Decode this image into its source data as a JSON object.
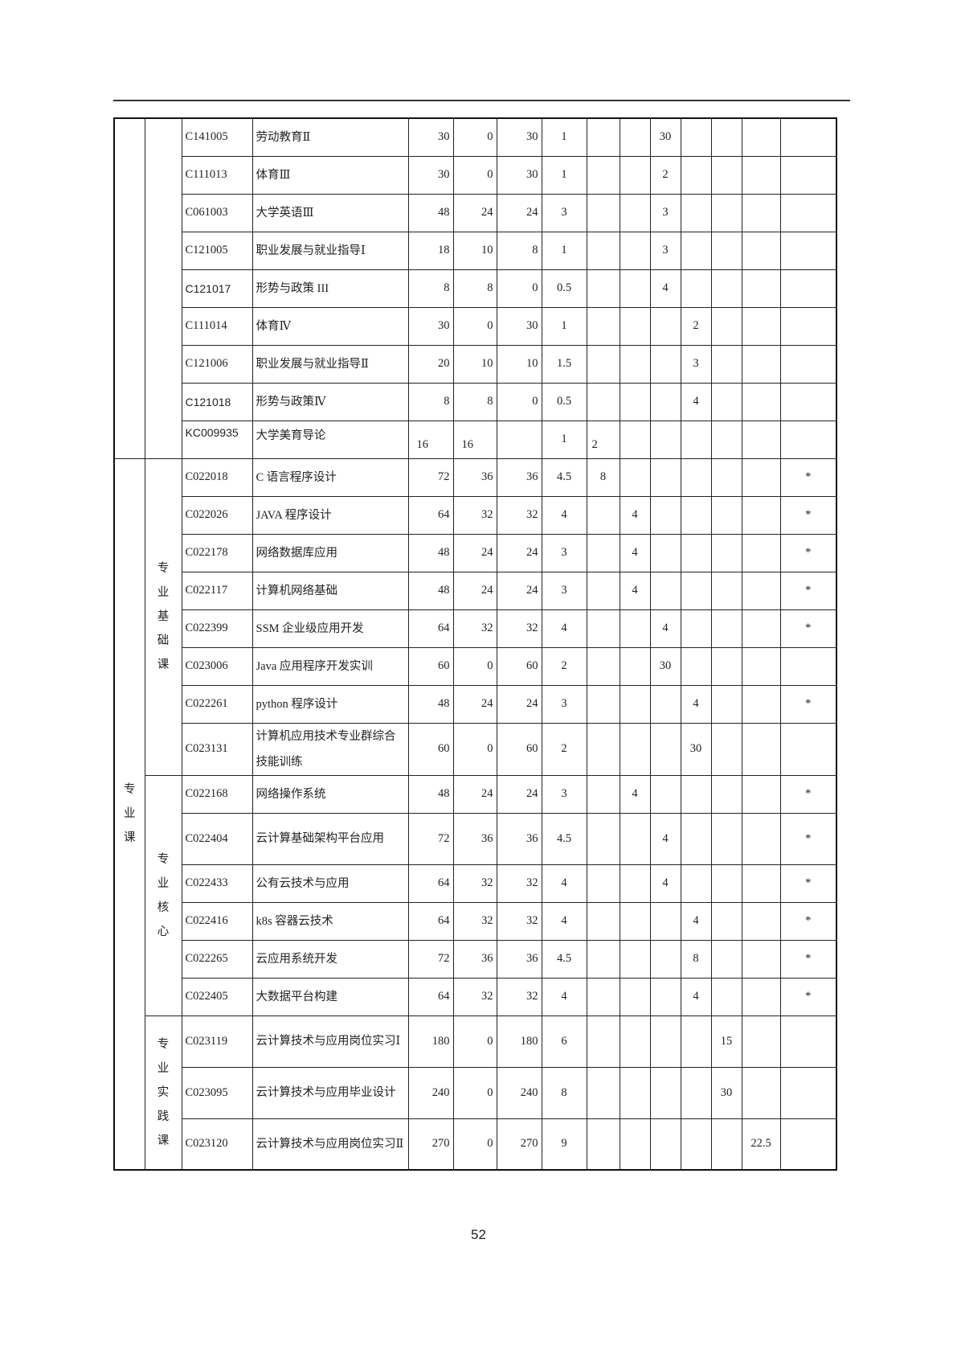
{
  "page_number": "52",
  "groups": [
    {
      "outer_label": "",
      "inner_label": "",
      "rows": [
        {
          "code": "C141005",
          "name": "劳动教育Ⅱ",
          "total": "30",
          "theory": "0",
          "practice": "30",
          "credit": "1",
          "sem": [
            "",
            "",
            "30",
            "",
            "",
            ""
          ],
          "mark": ""
        },
        {
          "code": "C111013",
          "name": "体育Ⅲ",
          "total": "30",
          "theory": "0",
          "practice": "30",
          "credit": "1",
          "sem": [
            "",
            "",
            "2",
            "",
            "",
            ""
          ],
          "mark": ""
        },
        {
          "code": "C061003",
          "name": "大学英语Ⅲ",
          "total": "48",
          "theory": "24",
          "practice": "24",
          "credit": "3",
          "sem": [
            "",
            "",
            "3",
            "",
            "",
            ""
          ],
          "mark": ""
        },
        {
          "code": "C121005",
          "name": "职业发展与就业指导Ⅰ",
          "total": "18",
          "theory": "10",
          "practice": "8",
          "credit": "1",
          "sem": [
            "",
            "",
            "3",
            "",
            "",
            ""
          ],
          "mark": ""
        },
        {
          "code": "C121017",
          "name": "形势与政策 III",
          "total": "8",
          "theory": "8",
          "practice": "0",
          "credit": "0.5",
          "sem": [
            "",
            "",
            "4",
            "",
            "",
            ""
          ],
          "mark": "",
          "sans": true
        },
        {
          "code": "C111014",
          "name": "体育Ⅳ",
          "total": "30",
          "theory": "0",
          "practice": "30",
          "credit": "1",
          "sem": [
            "",
            "",
            "",
            "2",
            "",
            ""
          ],
          "mark": ""
        },
        {
          "code": "C121006",
          "name": "职业发展与就业指导Ⅱ",
          "total": "20",
          "theory": "10",
          "practice": "10",
          "credit": "1.5",
          "sem": [
            "",
            "",
            "",
            "3",
            "",
            ""
          ],
          "mark": ""
        },
        {
          "code": "C121018",
          "name": "形势与政策Ⅳ",
          "total": "8",
          "theory": "8",
          "practice": "0",
          "credit": "0.5",
          "sem": [
            "",
            "",
            "",
            "4",
            "",
            ""
          ],
          "mark": "",
          "sans": true
        },
        {
          "code": "KC009935",
          "name": "大学美育导论",
          "total": "16",
          "theory": "16",
          "practice": "",
          "credit": "1",
          "sem": [
            "2",
            "",
            "",
            "",
            "",
            ""
          ],
          "mark": "",
          "sans": true,
          "special": true
        }
      ]
    },
    {
      "outer_label": "专业课",
      "inner_label": "专业基础课",
      "rows": [
        {
          "code": "C022018",
          "name": "C 语言程序设计",
          "total": "72",
          "theory": "36",
          "practice": "36",
          "credit": "4.5",
          "sem": [
            "8",
            "",
            "",
            "",
            "",
            ""
          ],
          "mark": "*"
        },
        {
          "code": "C022026",
          "name": "JAVA 程序设计",
          "total": "64",
          "theory": "32",
          "practice": "32",
          "credit": "4",
          "sem": [
            "",
            "4",
            "",
            "",
            "",
            ""
          ],
          "mark": "*"
        },
        {
          "code": "C022178",
          "name": "网络数据库应用",
          "total": "48",
          "theory": "24",
          "practice": "24",
          "credit": "3",
          "sem": [
            "",
            "4",
            "",
            "",
            "",
            ""
          ],
          "mark": "*"
        },
        {
          "code": "C022117",
          "name": "计算机网络基础",
          "total": "48",
          "theory": "24",
          "practice": "24",
          "credit": "3",
          "sem": [
            "",
            "4",
            "",
            "",
            "",
            ""
          ],
          "mark": "*"
        },
        {
          "code": "C022399",
          "name": "SSM 企业级应用开发",
          "total": "64",
          "theory": "32",
          "practice": "32",
          "credit": "4",
          "sem": [
            "",
            "",
            "4",
            "",
            "",
            ""
          ],
          "mark": "*"
        },
        {
          "code": "C023006",
          "name": "Java 应用程序开发实训",
          "total": "60",
          "theory": "0",
          "practice": "60",
          "credit": "2",
          "sem": [
            "",
            "",
            "30",
            "",
            "",
            ""
          ],
          "mark": ""
        },
        {
          "code": "C022261",
          "name": "python 程序设计",
          "total": "48",
          "theory": "24",
          "practice": "24",
          "credit": "3",
          "sem": [
            "",
            "",
            "",
            "4",
            "",
            ""
          ],
          "mark": "*"
        },
        {
          "code": "C023131",
          "name": "计算机应用技术专业群综合技能训练",
          "total": "60",
          "theory": "0",
          "practice": "60",
          "credit": "2",
          "sem": [
            "",
            "",
            "",
            "30",
            "",
            ""
          ],
          "mark": "",
          "double": true
        }
      ]
    },
    {
      "outer_label": "",
      "inner_label": "专业核心",
      "rows": [
        {
          "code": "C022168",
          "name": "网络操作系统",
          "total": "48",
          "theory": "24",
          "practice": "24",
          "credit": "3",
          "sem": [
            "",
            "4",
            "",
            "",
            "",
            ""
          ],
          "mark": "*"
        },
        {
          "code": "C022404",
          "name": "云计算基础架构平台应用",
          "total": "72",
          "theory": "36",
          "practice": "36",
          "credit": "4.5",
          "sem": [
            "",
            "",
            "4",
            "",
            "",
            ""
          ],
          "mark": "*",
          "double": true
        },
        {
          "code": "C022433",
          "name": "公有云技术与应用",
          "total": "64",
          "theory": "32",
          "practice": "32",
          "credit": "4",
          "sem": [
            "",
            "",
            "4",
            "",
            "",
            ""
          ],
          "mark": "*"
        },
        {
          "code": "C022416",
          "name": "k8s 容器云技术",
          "total": "64",
          "theory": "32",
          "practice": "32",
          "credit": "4",
          "sem": [
            "",
            "",
            "",
            "4",
            "",
            ""
          ],
          "mark": "*"
        },
        {
          "code": "C022265",
          "name": "云应用系统开发",
          "total": "72",
          "theory": "36",
          "practice": "36",
          "credit": "4.5",
          "sem": [
            "",
            "",
            "",
            "8",
            "",
            ""
          ],
          "mark": "*"
        },
        {
          "code": "C022405",
          "name": "大数据平台构建",
          "total": "64",
          "theory": "32",
          "practice": "32",
          "credit": "4",
          "sem": [
            "",
            "",
            "",
            "4",
            "",
            ""
          ],
          "mark": "*"
        }
      ]
    },
    {
      "outer_label": "",
      "inner_label": "专业实践课",
      "rows": [
        {
          "code": "C023119",
          "name": "云计算技术与应用岗位实习Ⅰ",
          "total": "180",
          "theory": "0",
          "practice": "180",
          "credit": "6",
          "sem": [
            "",
            "",
            "",
            "",
            "15",
            ""
          ],
          "mark": "",
          "double": true
        },
        {
          "code": "C023095",
          "name": "云计算技术与应用毕业设计",
          "total": "240",
          "theory": "0",
          "practice": "240",
          "credit": "8",
          "sem": [
            "",
            "",
            "",
            "",
            "30",
            ""
          ],
          "mark": "",
          "double": true
        },
        {
          "code": "C023120",
          "name": "云计算技术与应用岗位实习Ⅱ",
          "total": "270",
          "theory": "0",
          "practice": "270",
          "credit": "9",
          "sem": [
            "",
            "",
            "",
            "",
            "",
            "22.5"
          ],
          "mark": "",
          "double": true
        }
      ]
    }
  ]
}
